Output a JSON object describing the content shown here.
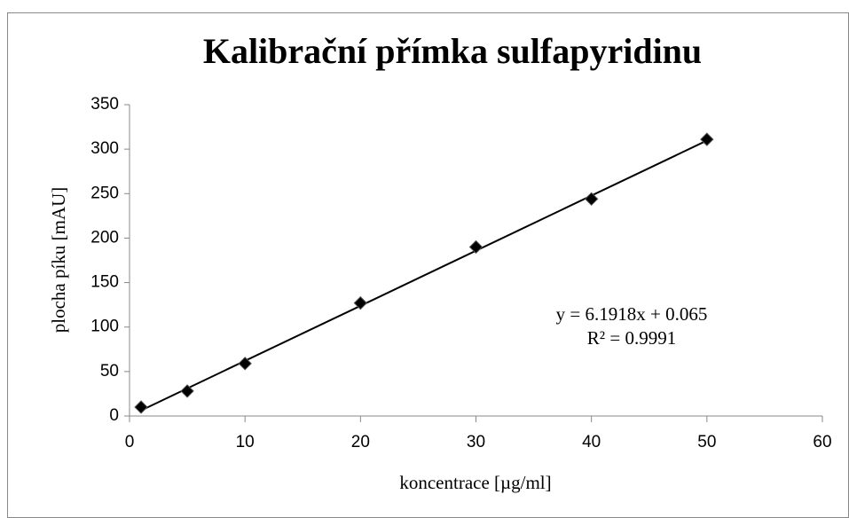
{
  "chart_data": {
    "type": "scatter",
    "title": "Kalibrační přímka sulfapyridinu",
    "x_label": "koncentrace [µg/ml]",
    "y_label": "plocha píku [mAU]",
    "x": [
      1,
      5,
      10,
      20,
      30,
      40,
      50
    ],
    "values": [
      10,
      28,
      59,
      127,
      190,
      244,
      311
    ],
    "color": "#000000",
    "xlim": [
      0,
      60
    ],
    "xticks": [
      0,
      10,
      20,
      30,
      40,
      50,
      60
    ],
    "ylim": [
      0,
      350
    ],
    "yticks": [
      0,
      50,
      100,
      150,
      200,
      250,
      300,
      350
    ],
    "grid": false,
    "trendline": {
      "slope": 6.1918,
      "intercept": 0.065,
      "equation": "y = 6.1918x + 0.065",
      "r2_label": "R² = 0.9991"
    }
  }
}
